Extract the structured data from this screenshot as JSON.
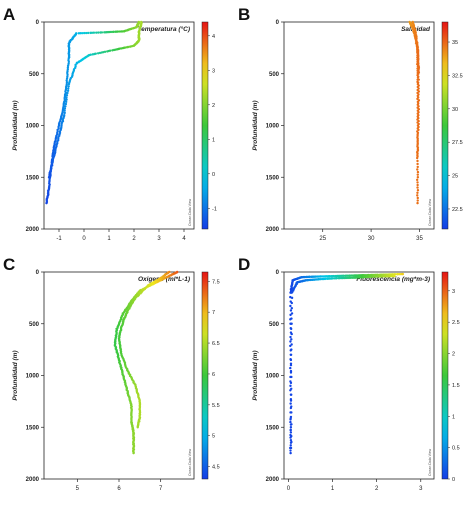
{
  "panels": [
    {
      "letter": "A",
      "title": "Temperatura (°C)",
      "ylabel": "Profundidad (m)",
      "watermark": "Ocean Data View",
      "colormap": "rainbow",
      "cbar_ticks": [
        "4",
        "3",
        "2",
        "1",
        "0",
        "-1"
      ],
      "cbar_range": [
        -1.6,
        4.4
      ]
    },
    {
      "letter": "B",
      "title": "Salinidad",
      "ylabel": "Profundidad (m)",
      "watermark": "Ocean Data View",
      "colormap": "rainbow",
      "cbar_ticks": [
        "35",
        "32.5",
        "30",
        "27.5",
        "25",
        "22.5"
      ],
      "cbar_range": [
        21,
        36.5
      ]
    },
    {
      "letter": "C",
      "title": "Oxigeno (ml*L-1)",
      "ylabel": "Profundidad (m)",
      "watermark": "Ocean Data View",
      "colormap": "rainbow",
      "cbar_ticks": [
        "7.5",
        "7",
        "6.5",
        "6",
        "5.5",
        "5",
        "4.5"
      ],
      "cbar_range": [
        4.3,
        7.65
      ]
    },
    {
      "letter": "D",
      "title": "Fluorescencia (mg*m-3)",
      "ylabel": "Profundidad (m)",
      "watermark": "Ocean Data View",
      "colormap": "rainbow",
      "cbar_ticks": [
        "3",
        "2.5",
        "2",
        "1.5",
        "1",
        "0.5",
        "0"
      ],
      "cbar_range": [
        0,
        3.3
      ]
    }
  ],
  "chart_data": [
    {
      "type": "scatter",
      "title": "Temperatura (°C)",
      "ylabel": "Profundidad (m)",
      "xlim": [
        -1.6,
        4.4
      ],
      "ylim": [
        2000,
        0
      ],
      "xticks": [
        "-1",
        "0",
        "1",
        "2",
        "3",
        "4"
      ],
      "yticks": [
        "0",
        "500",
        "1000",
        "1500",
        "2000"
      ],
      "series": [
        {
          "x": [
            2.2,
            2.1,
            1.6,
            0.8,
            -0.3,
            -0.6,
            -0.6,
            -0.7,
            -0.8,
            -1.0,
            -1.2,
            -1.3,
            -1.4,
            -1.5
          ],
          "y": [
            0,
            50,
            90,
            100,
            110,
            200,
            350,
            600,
            800,
            1000,
            1200,
            1400,
            1600,
            1750
          ]
        },
        {
          "x": [
            2.3,
            2.2,
            2.2,
            2.0,
            1.2,
            0.2,
            -0.3,
            -0.6,
            -0.8,
            -1.0,
            -1.2,
            -1.4
          ],
          "y": [
            0,
            100,
            180,
            230,
            270,
            320,
            400,
            600,
            900,
            1100,
            1300,
            1500
          ]
        }
      ]
    },
    {
      "type": "scatter",
      "title": "Salinidad",
      "ylabel": "Profundidad (m)",
      "xlim": [
        21,
        36.5
      ],
      "ylim": [
        2000,
        0
      ],
      "xticks": [
        "25",
        "30",
        "35"
      ],
      "yticks": [
        "0",
        "500",
        "1000",
        "1500",
        "2000"
      ],
      "series": [
        {
          "x": [
            34.0,
            34.3,
            34.6,
            34.8,
            34.8,
            34.8,
            34.8,
            34.8
          ],
          "y": [
            0,
            60,
            150,
            300,
            600,
            1000,
            1400,
            1750
          ]
        },
        {
          "x": [
            34.3,
            34.6,
            34.9,
            34.9,
            34.9,
            34.8
          ],
          "y": [
            0,
            100,
            300,
            500,
            900,
            1300
          ]
        }
      ]
    },
    {
      "type": "scatter",
      "title": "Oxigeno (ml*L-1)",
      "ylabel": "Profundidad (m)",
      "xlim": [
        4.2,
        7.8
      ],
      "ylim": [
        2000,
        0
      ],
      "xticks": [
        "5",
        "6",
        "7"
      ],
      "yticks": [
        "0",
        "500",
        "1000",
        "1500",
        "2000"
      ],
      "series": [
        {
          "x": [
            7.4,
            7.2,
            6.9,
            6.5,
            6.3,
            6.1,
            5.95,
            5.9,
            6.0,
            6.1,
            6.2,
            6.3,
            6.3,
            6.35,
            6.35,
            6.35
          ],
          "y": [
            0,
            40,
            100,
            180,
            280,
            400,
            550,
            700,
            850,
            1000,
            1150,
            1300,
            1450,
            1550,
            1650,
            1750
          ]
        },
        {
          "x": [
            7.2,
            7.0,
            6.7,
            6.4,
            6.2,
            6.1,
            6.0,
            6.05,
            6.2,
            6.4,
            6.5,
            6.5,
            6.45
          ],
          "y": [
            0,
            60,
            130,
            250,
            380,
            480,
            620,
            780,
            950,
            1100,
            1250,
            1400,
            1500
          ]
        }
      ]
    },
    {
      "type": "scatter",
      "title": "Fluorescencia (mg*m-3)",
      "ylabel": "Profundidad (m)",
      "xlim": [
        -0.1,
        3.3
      ],
      "ylim": [
        2000,
        0
      ],
      "xticks": [
        "0",
        "1",
        "2",
        "3"
      ],
      "yticks": [
        "0",
        "500",
        "1000",
        "1500",
        "2000"
      ],
      "series": [
        {
          "x": [
            2.6,
            2.2,
            1.8,
            1.4,
            1.0,
            0.6,
            0.3,
            0.1,
            0.05,
            0.05,
            0.05,
            0.05
          ],
          "y": [
            20,
            25,
            30,
            35,
            40,
            45,
            50,
            80,
            200,
            800,
            1400,
            1750
          ]
        },
        {
          "x": [
            2.4,
            1.9,
            1.5,
            1.1,
            0.7,
            0.4,
            0.2,
            0.08,
            0.06,
            0.06
          ],
          "y": [
            40,
            45,
            55,
            60,
            70,
            80,
            100,
            200,
            900,
            1700
          ]
        }
      ]
    }
  ]
}
